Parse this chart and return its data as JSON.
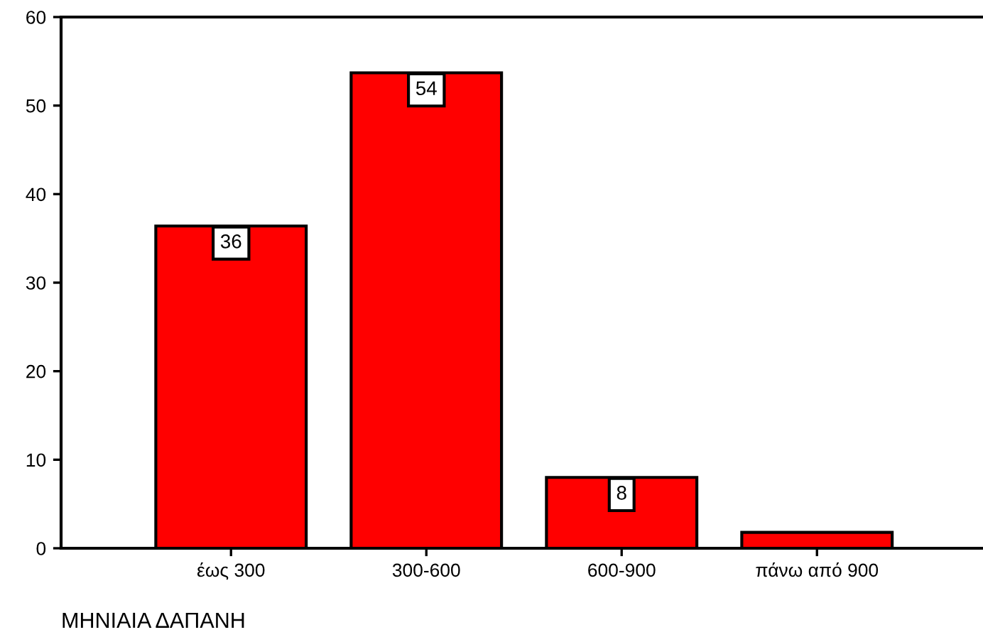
{
  "chart_data": {
    "type": "bar",
    "xlabel": "ΜΗΝΙΑΙΑ ΔΑΠΑΝΗ",
    "categories": [
      "έως 300",
      "300-600",
      "600-900",
      "πάνω από 900"
    ],
    "values": [
      36.4,
      53.7,
      8,
      1.8
    ],
    "value_labels": [
      "36",
      "54",
      "8",
      null
    ],
    "color": "#ff0000",
    "ylim": [
      0,
      60
    ],
    "yticks": [
      0,
      10,
      20,
      30,
      40,
      50,
      60
    ],
    "grid": false,
    "legend": false
  }
}
